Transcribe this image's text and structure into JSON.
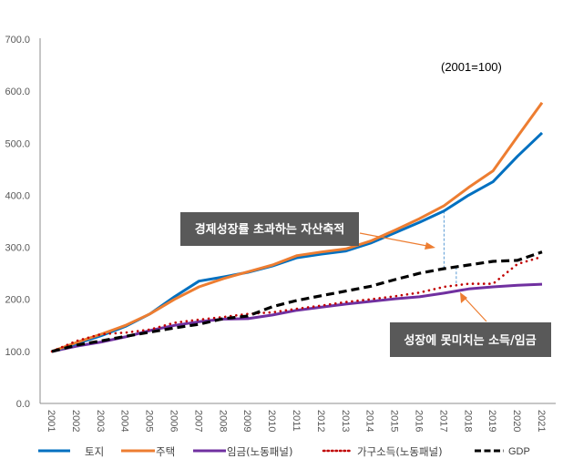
{
  "chart_data": {
    "type": "line",
    "title": "",
    "subtitle": "(2001=100)",
    "xlabel": "",
    "ylabel": "",
    "ylim": [
      0,
      700
    ],
    "yticks": [
      "0.0",
      "100.0",
      "200.0",
      "300.0",
      "400.0",
      "500.0",
      "600.0",
      "700.0"
    ],
    "ytick_values": [
      0,
      100,
      200,
      300,
      400,
      500,
      600,
      700
    ],
    "grid": false,
    "legend_position": "bottom",
    "x": [
      "2001",
      "2002",
      "2003",
      "2004",
      "2005",
      "2006",
      "2007",
      "2008",
      "2009",
      "2010",
      "2011",
      "2012",
      "2013",
      "2014",
      "2015",
      "2016",
      "2017",
      "2018",
      "2019",
      "2020",
      "2021"
    ],
    "series": [
      {
        "name": "토지",
        "color": "#0070C0",
        "style": "solid",
        "values": [
          100,
          115,
          130,
          148,
          172,
          205,
          235,
          243,
          252,
          264,
          280,
          287,
          293,
          308,
          328,
          348,
          370,
          400,
          426,
          475,
          520
        ]
      },
      {
        "name": "주택",
        "color": "#ED7D31",
        "style": "solid",
        "values": [
          100,
          117,
          133,
          150,
          172,
          200,
          224,
          240,
          253,
          266,
          284,
          291,
          297,
          312,
          333,
          355,
          380,
          415,
          447,
          513,
          578
        ]
      },
      {
        "name": "임금(노동패널)",
        "color": "#7030A0",
        "style": "solid",
        "values": [
          100,
          110,
          118,
          128,
          140,
          150,
          157,
          162,
          163,
          170,
          179,
          185,
          191,
          196,
          201,
          205,
          212,
          220,
          224,
          227,
          229
        ]
      },
      {
        "name": "가구소득(노동패널)",
        "color": "#C00000",
        "style": "dotted",
        "values": [
          100,
          120,
          133,
          136,
          142,
          155,
          161,
          166,
          172,
          175,
          182,
          188,
          195,
          200,
          206,
          213,
          224,
          230,
          230,
          268,
          282
        ]
      },
      {
        "name": "GDP",
        "color": "#000000",
        "style": "dashed",
        "values": [
          100,
          112,
          120,
          129,
          137,
          145,
          152,
          163,
          168,
          186,
          198,
          207,
          216,
          225,
          238,
          250,
          259,
          266,
          273,
          275,
          291
        ]
      }
    ],
    "annotations": [
      {
        "text": "경제성장률 초과하는 자산축적",
        "box_color": "#595959",
        "arrow_color": "#ED7D31"
      },
      {
        "text": "성장에 못미치는 소득/임금",
        "box_color": "#595959",
        "arrow_color": "#ED7D31"
      }
    ],
    "guide_lines": [
      {
        "x": "2017",
        "from_value": 370,
        "to_value": 259,
        "color": "#5B9BD5",
        "style": "dashed"
      },
      {
        "x": "2017.5",
        "from_value": 262,
        "to_value": 226,
        "color": "#5B9BD5",
        "style": "dashed"
      }
    ]
  }
}
